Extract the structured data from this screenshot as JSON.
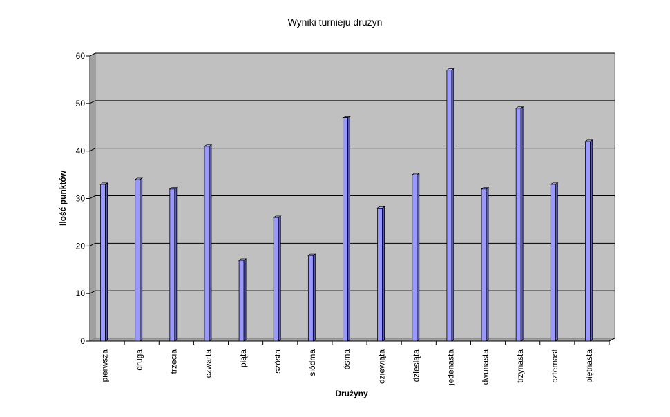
{
  "chart_data": {
    "type": "bar",
    "title": "Wyniki turnieju drużyn",
    "xlabel": "Drużyny",
    "ylabel": "Ilość punktów",
    "ylim": [
      0,
      60
    ],
    "yticks": [
      "0",
      "10",
      "20",
      "30",
      "40",
      "50",
      "60"
    ],
    "grid": true,
    "categories": [
      "pierwsza",
      "druga",
      "trzecia",
      "czwarta",
      "piąta",
      "szósta",
      "siódma",
      "ósma",
      "dziewiąta",
      "dziesiąta",
      "jedenasta",
      "dwunasta",
      "trzynasta",
      "czternast",
      "piętnasta"
    ],
    "values": [
      33,
      34,
      32,
      41,
      17,
      26,
      18,
      47,
      28,
      35,
      57,
      32,
      49,
      33,
      42
    ],
    "colors": {
      "plot_background": "#c0c0c0",
      "bar_face": "#9999ff",
      "bar_side": "#5a5ab4",
      "bar_top": "#c6c6ff",
      "gridline": "#000000"
    }
  }
}
